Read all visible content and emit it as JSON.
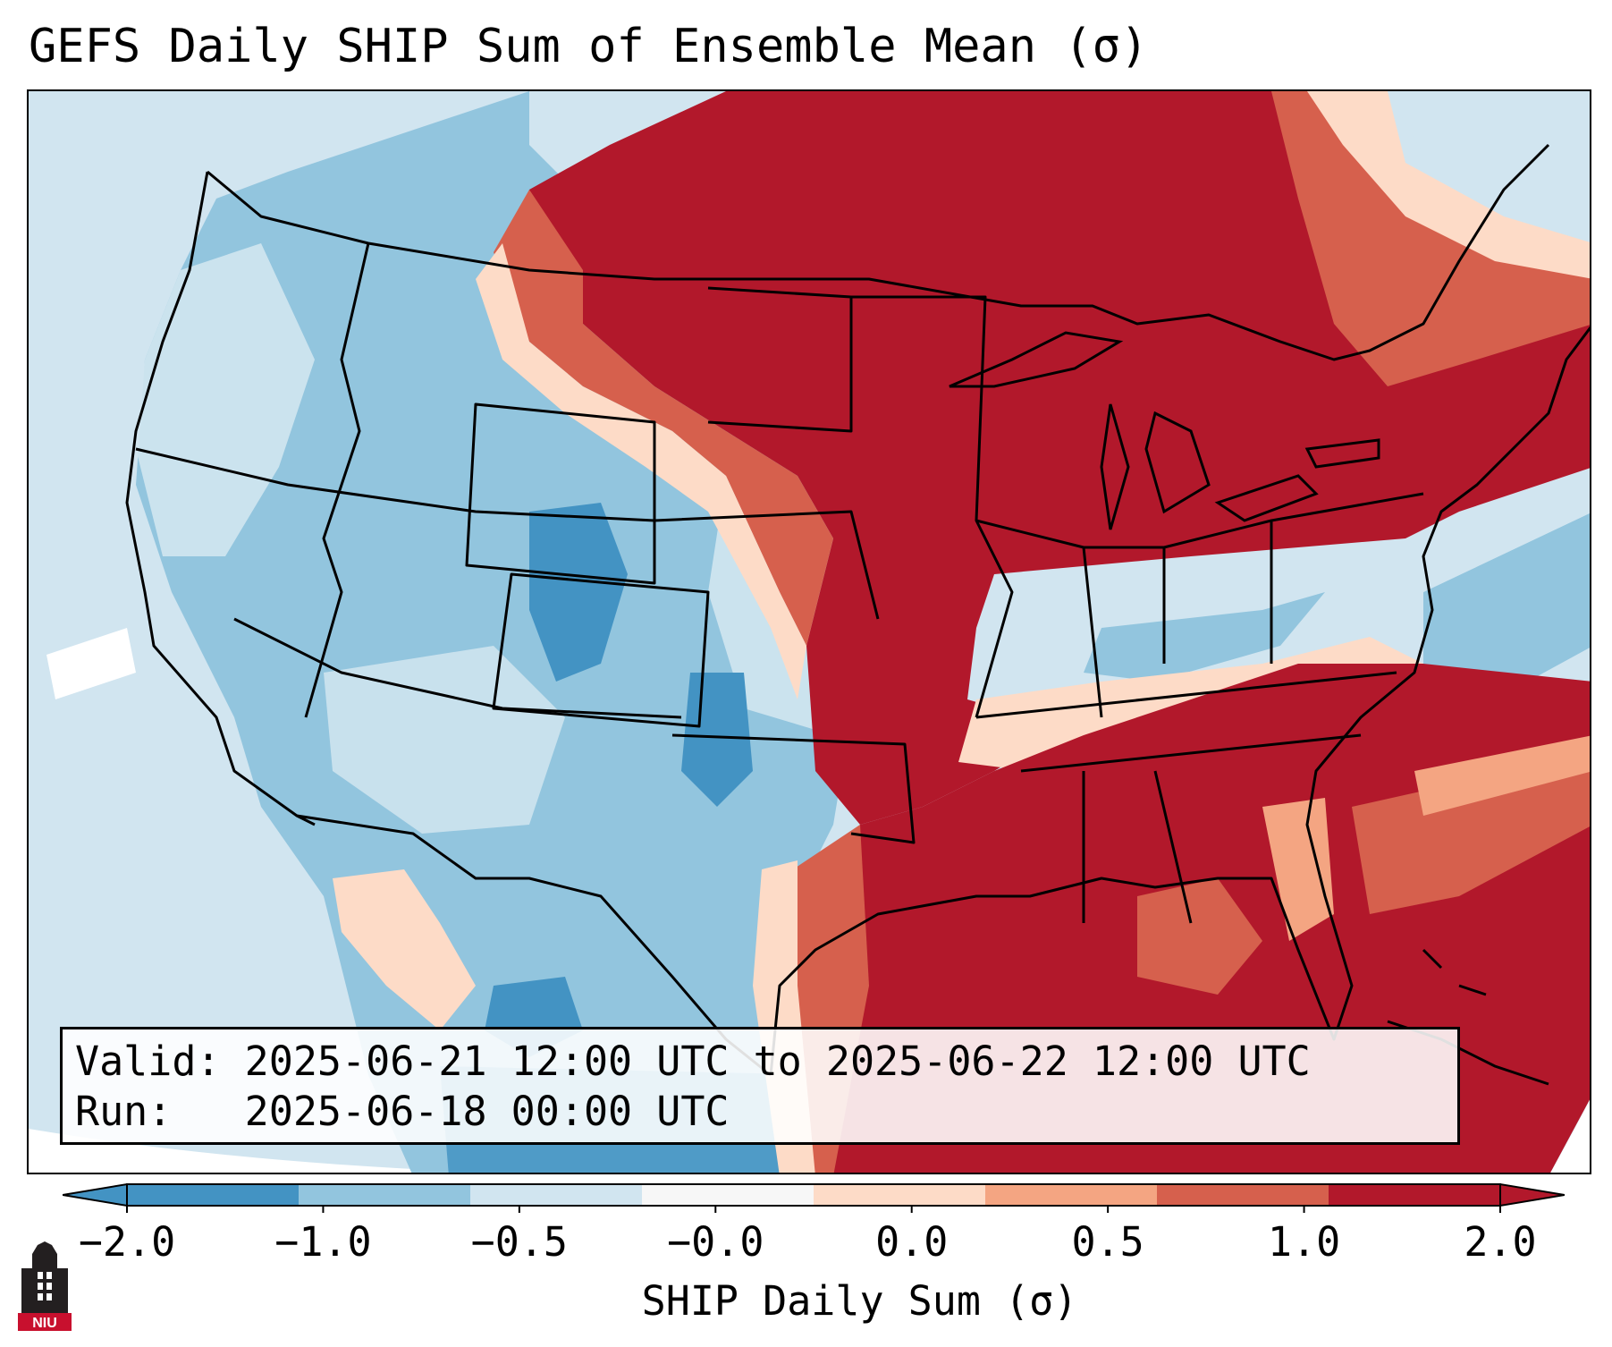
{
  "title": "GEFS Daily SHIP Sum of Ensemble Mean (σ)",
  "info": {
    "valid_label": "Valid:",
    "valid_value": "2025-06-21 12:00 UTC to 2025-06-22 12:00 UTC",
    "run_label": "Run:",
    "run_value": "2025-06-18 00:00 UTC"
  },
  "colorbar": {
    "label": "SHIP Daily Sum (σ)",
    "ticks": [
      "−2.0",
      "−1.0",
      "−0.5",
      "−0.0",
      "0.0",
      "0.5",
      "1.0",
      "2.0"
    ],
    "colors": [
      "#4393c3",
      "#92c5de",
      "#d1e5f0",
      "#f7f7f7",
      "#fddbc7",
      "#f4a582",
      "#d6604d",
      "#b2182b"
    ],
    "extend": "both"
  },
  "map": {
    "region": "Contiguous United States",
    "projection": "Lambert conformal",
    "field_colors": {
      "strong_negative": "#4393c3",
      "negative": "#92c5de",
      "weak_negative": "#d1e5f0",
      "neutral": "#f7f7f7",
      "weak_positive": "#fddbc7",
      "positive": "#f4a582",
      "moderate_positive": "#d6604d",
      "strong_positive": "#b2182b"
    }
  },
  "logo": {
    "text": "NIU"
  }
}
